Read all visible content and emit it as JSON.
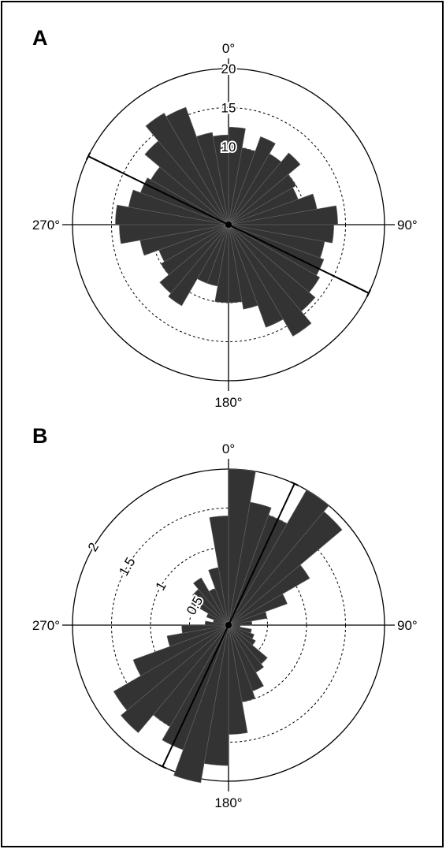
{
  "figure": {
    "panels": [
      "A",
      "B"
    ],
    "colors": {
      "bar_fill": "#333333",
      "bar_stroke": "#666666",
      "axis": "#000000",
      "grid": "#000000"
    }
  },
  "chart_data": [
    {
      "panel": "A",
      "type": "rose",
      "direction_labels": [
        "0°",
        "90°",
        "180°",
        "270°"
      ],
      "radial_max": 20,
      "radial_ticks": [
        10,
        15,
        20
      ],
      "radial_tick_labels": [
        "10",
        "15",
        "20"
      ],
      "sector_width_deg": 10,
      "bins_start_deg": [
        0,
        10,
        20,
        30,
        40,
        50,
        60,
        70,
        80,
        90,
        100,
        110,
        120,
        130,
        140,
        150,
        160,
        170,
        180,
        190,
        200,
        210,
        220,
        230,
        240,
        250,
        260,
        270,
        280,
        290,
        300,
        310,
        320,
        330,
        340,
        350
      ],
      "values": [
        12.5,
        10,
        12,
        10.5,
        12,
        10,
        9.5,
        11.5,
        14,
        13.5,
        12.5,
        13,
        13.5,
        14.5,
        16.5,
        14,
        11,
        10,
        10,
        8,
        8,
        12,
        11.5,
        10,
        9.5,
        11.5,
        14,
        14.5,
        13,
        12,
        11.5,
        14,
        16.5,
        16,
        12,
        11.5
      ],
      "mean_direction_deg": 296,
      "grid": true
    },
    {
      "panel": "B",
      "type": "rose",
      "direction_labels": [
        "0°",
        "90°",
        "180°",
        "270°"
      ],
      "radial_max": 2,
      "radial_ticks": [
        0.5,
        1,
        1.5,
        2
      ],
      "radial_tick_labels": [
        "0.5",
        "1",
        "1.5",
        "2"
      ],
      "sector_width_deg": 10,
      "bins_start_deg": [
        0,
        10,
        20,
        30,
        40,
        50,
        60,
        70,
        80,
        90,
        100,
        110,
        120,
        130,
        140,
        150,
        160,
        170,
        180,
        190,
        200,
        210,
        220,
        230,
        240,
        250,
        260,
        270,
        280,
        290,
        300,
        310,
        320,
        330,
        340,
        350
      ],
      "values": [
        2,
        1.6,
        1.5,
        2,
        1.9,
        1.2,
        0.8,
        0.5,
        0.3,
        0.15,
        0.3,
        0.35,
        0.4,
        0.65,
        0.7,
        0.9,
        1.0,
        1.4,
        1.8,
        2.05,
        1.7,
        1.5,
        1.8,
        1.7,
        1.3,
        0.8,
        0.6,
        0.3,
        0.2,
        0.3,
        0.55,
        0.6,
        0.7,
        0.5,
        0.75,
        1.4
      ],
      "mean_direction_deg": 25,
      "grid": true
    }
  ]
}
